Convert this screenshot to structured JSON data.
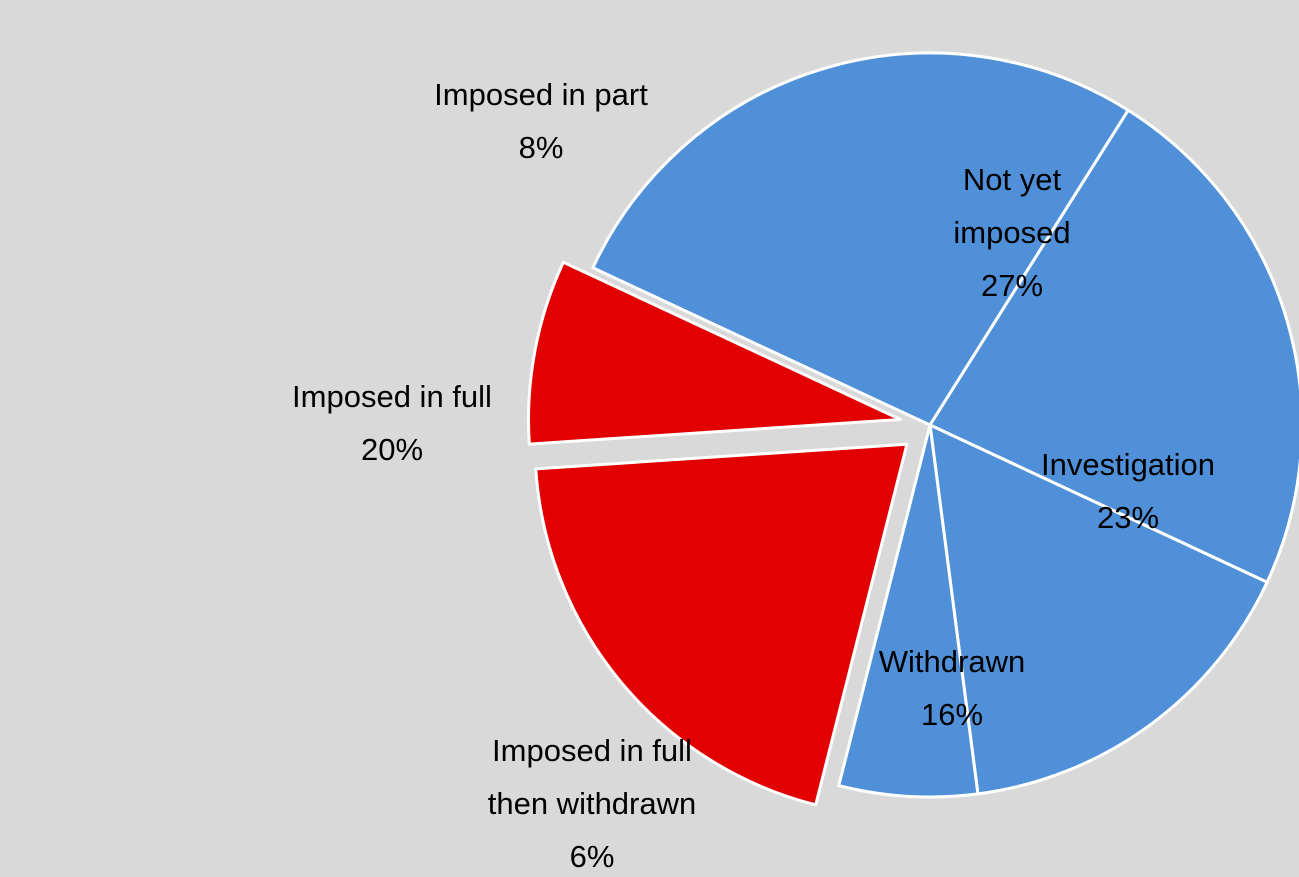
{
  "colors": {
    "background": "#d9d9d9",
    "emphasis": "#e20000",
    "base": "#4f90d9",
    "border": "#ffffff"
  },
  "chart_data": {
    "type": "pie",
    "title": "",
    "legend": "none",
    "slices": [
      {
        "key": "not-yet-imposed",
        "label_lines": [
          "Not yet",
          "imposed"
        ],
        "value": 27,
        "value_label": "27%",
        "color": "#4f90d9",
        "exploded": false
      },
      {
        "key": "investigation",
        "label_lines": [
          "Investigation"
        ],
        "value": 23,
        "value_label": "23%",
        "color": "#4f90d9",
        "exploded": false
      },
      {
        "key": "withdrawn",
        "label_lines": [
          "Withdrawn"
        ],
        "value": 16,
        "value_label": "16%",
        "color": "#4f90d9",
        "exploded": false
      },
      {
        "key": "imposed-in-full-then-withdrawn",
        "label_lines": [
          "Imposed in full",
          "then withdrawn"
        ],
        "value": 6,
        "value_label": "6%",
        "color": "#4f90d9",
        "exploded": false
      },
      {
        "key": "imposed-in-full",
        "label_lines": [
          "Imposed in full"
        ],
        "value": 20,
        "value_label": "20%",
        "color": "#e20000",
        "exploded": true
      },
      {
        "key": "imposed-in-part",
        "label_lines": [
          "Imposed in part"
        ],
        "value": 8,
        "value_label": "8%",
        "color": "#e20000",
        "exploded": true
      }
    ]
  }
}
